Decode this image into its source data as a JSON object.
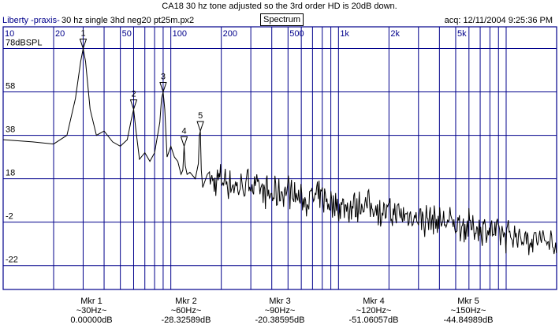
{
  "header": {
    "title": "CA18 30 hz tone adjusted so the 3rd order HD is 20dB down.",
    "app_name": "Liberty -praxis-",
    "file_info": "30 hz single 3hd neg20 pt25m.px2",
    "mode_button": "Spectrum",
    "acq_label": "acq: 12/11/2004 9:25:36 PM"
  },
  "colors": {
    "grid": "#00008b",
    "trace": "#000000",
    "text_accent": "#00008b"
  },
  "chart_data": {
    "type": "line",
    "x_scale": "log",
    "xlim": [
      10,
      20000
    ],
    "ylim": [
      -33,
      88
    ],
    "ylabel": "dBSPL",
    "x_ticks": [
      {
        "value": 10,
        "label": "10"
      },
      {
        "value": 20,
        "label": "20"
      },
      {
        "value": 50,
        "label": "50"
      },
      {
        "value": 100,
        "label": "100"
      },
      {
        "value": 200,
        "label": "200"
      },
      {
        "value": 500,
        "label": "500"
      },
      {
        "value": 1000,
        "label": "1k"
      },
      {
        "value": 2000,
        "label": "2k"
      },
      {
        "value": 5000,
        "label": "5k"
      }
    ],
    "y_ticks": [
      {
        "value": 78,
        "label": "78dBSPL"
      },
      {
        "value": 58,
        "label": "58"
      },
      {
        "value": 38,
        "label": "38"
      },
      {
        "value": 18,
        "label": "18"
      },
      {
        "value": -2,
        "label": "-2"
      },
      {
        "value": -22,
        "label": "-22"
      }
    ],
    "series": [
      {
        "x": [
          10,
          15,
          20,
          24,
          27,
          29,
          30,
          31,
          33,
          36,
          40,
          45,
          50,
          55,
          58,
          60,
          62,
          65,
          70,
          75,
          80,
          86,
          88,
          90,
          92,
          95,
          100,
          105,
          110,
          115,
          118,
          120,
          122,
          125,
          130,
          140,
          146,
          148,
          150,
          152,
          155,
          165,
          180,
          200,
          250,
          300,
          400,
          500,
          600,
          800,
          1000,
          1500,
          2000,
          3000,
          5000,
          7000,
          10000,
          15000,
          20000
        ],
        "y": [
          36,
          35,
          34,
          38,
          55,
          72,
          78,
          72,
          50,
          38,
          40,
          35,
          33,
          36,
          45,
          50,
          40,
          27,
          30,
          26,
          30,
          44,
          55,
          58,
          50,
          28,
          33,
          28,
          26,
          20,
          22,
          33,
          24,
          20,
          21,
          18,
          25,
          38,
          40,
          22,
          14,
          20,
          16,
          18,
          14,
          16,
          10,
          13,
          8,
          9,
          5,
          6,
          2,
          0,
          -3,
          -5,
          -8,
          -10,
          -12
        ]
      }
    ],
    "markers": [
      {
        "id": "1",
        "label": "Mkr 1",
        "freq": "~30Hz~",
        "value": "0.00000dB",
        "x": 30,
        "y": 78
      },
      {
        "id": "2",
        "label": "Mkr 2",
        "freq": "~60Hz~",
        "value": "-28.32589dB",
        "x": 60,
        "y": 50
      },
      {
        "id": "3",
        "label": "Mkr 3",
        "freq": "~90Hz~",
        "value": "-20.38595dB",
        "x": 90,
        "y": 58
      },
      {
        "id": "4",
        "label": "Mkr 4",
        "freq": "~120Hz~",
        "value": "-51.06057dB",
        "x": 120,
        "y": 33
      },
      {
        "id": "5",
        "label": "Mkr 5",
        "freq": "~150Hz~",
        "value": "-44.84989dB",
        "x": 150,
        "y": 40
      }
    ]
  }
}
